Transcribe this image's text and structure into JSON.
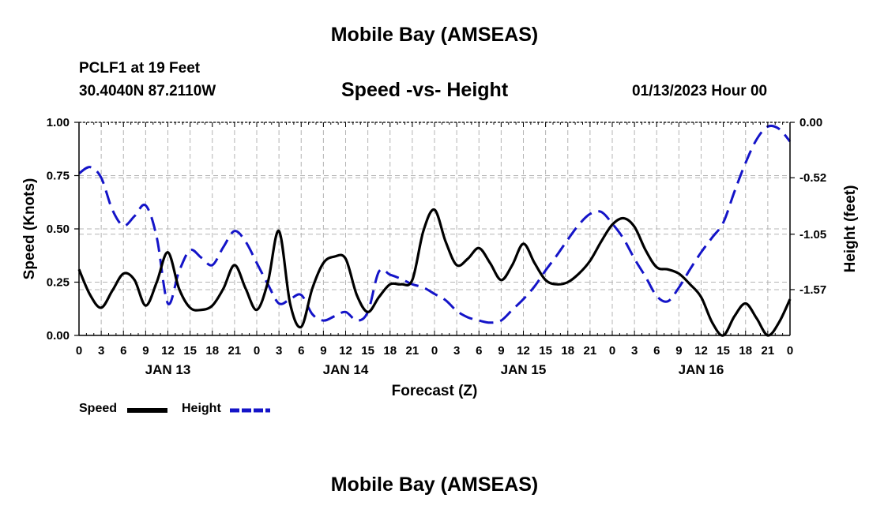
{
  "page": {
    "title_top": "Mobile Bay (AMSEAS)",
    "title_bottom": "Mobile Bay (AMSEAS)",
    "station": "PCLF1 at 19 Feet",
    "coords": "30.4040N  87.2110W",
    "subtitle": "Speed -vs- Height",
    "datetime": "01/13/2023 Hour 00"
  },
  "legend": {
    "speed_label": "Speed",
    "height_label": "Height"
  },
  "colors": {
    "speed": "#000000",
    "height": "#1414c8",
    "grid": "#b4b4b4"
  },
  "chart_data": {
    "type": "line",
    "xlabel": "Forecast (Z)",
    "ylabel_left": "Speed (Knots)",
    "ylabel_right": "Height (feet)",
    "xlim": [
      0,
      96
    ],
    "ylim_left": [
      0,
      1.0
    ],
    "ylim_right": [
      -2.0,
      0.0
    ],
    "grid": true,
    "x_ticks": [
      0,
      3,
      6,
      9,
      12,
      15,
      18,
      21,
      24,
      27,
      30,
      33,
      36,
      39,
      42,
      45,
      48,
      51,
      54,
      57,
      60,
      63,
      66,
      69,
      72,
      75,
      78,
      81,
      84,
      87,
      90,
      93,
      96
    ],
    "x_tick_labels": [
      "0",
      "3",
      "6",
      "9",
      "12",
      "15",
      "18",
      "21",
      "0",
      "3",
      "6",
      "9",
      "12",
      "15",
      "18",
      "21",
      "0",
      "3",
      "6",
      "9",
      "12",
      "15",
      "18",
      "21",
      "0",
      "3",
      "6",
      "9",
      "12",
      "15",
      "18",
      "21",
      "0"
    ],
    "day_labels": [
      {
        "x": 12,
        "label": "JAN 13"
      },
      {
        "x": 36,
        "label": "JAN 14"
      },
      {
        "x": 60,
        "label": "JAN 15"
      },
      {
        "x": 84,
        "label": "JAN 16"
      }
    ],
    "y_left_ticks": [
      0,
      0.25,
      0.5,
      0.75,
      1.0
    ],
    "y_left_tick_labels": [
      "0.00",
      "0.25",
      "0.50",
      "0.75",
      "1.00"
    ],
    "y_right_ticks": [
      0.0,
      -0.52,
      -1.05,
      -1.57
    ],
    "y_right_tick_labels": [
      "0.00",
      "-0.52",
      "-1.05",
      "-1.57"
    ],
    "series": [
      {
        "name": "Speed",
        "axis": "left",
        "style": "solid",
        "x": [
          0,
          1.5,
          3,
          4.5,
          6,
          7.5,
          9,
          10.5,
          12,
          13.5,
          15,
          16.5,
          18,
          19.5,
          21,
          22.5,
          24,
          25.5,
          27,
          28.5,
          30,
          31.5,
          33,
          34.5,
          36,
          37.5,
          39,
          40.5,
          42,
          43.5,
          45,
          46.5,
          48,
          49.5,
          51,
          52.5,
          54,
          55.5,
          57,
          58.5,
          60,
          61.5,
          63,
          64.5,
          66,
          67.5,
          69,
          70.5,
          72,
          73.5,
          75,
          76.5,
          78,
          79.5,
          81,
          82.5,
          84,
          85.5,
          87,
          88.5,
          90,
          91.5,
          93,
          94.5,
          96
        ],
        "values": [
          0.31,
          0.19,
          0.13,
          0.21,
          0.29,
          0.26,
          0.14,
          0.25,
          0.39,
          0.22,
          0.13,
          0.12,
          0.14,
          0.22,
          0.33,
          0.22,
          0.12,
          0.25,
          0.49,
          0.15,
          0.04,
          0.22,
          0.34,
          0.37,
          0.36,
          0.19,
          0.11,
          0.18,
          0.24,
          0.24,
          0.26,
          0.49,
          0.59,
          0.44,
          0.33,
          0.36,
          0.41,
          0.34,
          0.26,
          0.33,
          0.43,
          0.34,
          0.26,
          0.24,
          0.25,
          0.29,
          0.35,
          0.44,
          0.52,
          0.55,
          0.51,
          0.4,
          0.32,
          0.31,
          0.29,
          0.24,
          0.18,
          0.06,
          0.0,
          0.09,
          0.15,
          0.08,
          0.0,
          0.06,
          0.17
        ]
      },
      {
        "name": "Height",
        "axis": "right",
        "style": "dashed",
        "x": [
          0,
          1.5,
          3,
          4.5,
          6,
          7.5,
          9,
          10.5,
          12,
          13.5,
          15,
          16.5,
          18,
          19.5,
          21,
          22.5,
          24,
          25.5,
          27,
          28.5,
          30,
          31.5,
          33,
          34.5,
          36,
          37.5,
          39,
          40.5,
          42,
          43.5,
          45,
          46.5,
          48,
          49.5,
          51,
          52.5,
          54,
          55.5,
          57,
          58.5,
          60,
          61.5,
          63,
          64.5,
          66,
          67.5,
          69,
          70.5,
          72,
          73.5,
          75,
          76.5,
          78,
          79.5,
          81,
          82.5,
          84,
          85.5,
          87,
          88.5,
          90,
          91.5,
          93,
          94.5,
          96
        ],
        "values": [
          -0.48,
          -0.42,
          -0.52,
          -0.82,
          -0.97,
          -0.88,
          -0.78,
          -1.08,
          -1.7,
          -1.4,
          -1.2,
          -1.27,
          -1.34,
          -1.17,
          -1.02,
          -1.12,
          -1.32,
          -1.52,
          -1.7,
          -1.66,
          -1.62,
          -1.8,
          -1.86,
          -1.82,
          -1.78,
          -1.86,
          -1.78,
          -1.4,
          -1.43,
          -1.47,
          -1.52,
          -1.55,
          -1.61,
          -1.67,
          -1.77,
          -1.83,
          -1.86,
          -1.88,
          -1.86,
          -1.76,
          -1.66,
          -1.54,
          -1.39,
          -1.25,
          -1.1,
          -0.96,
          -0.86,
          -0.84,
          -0.95,
          -1.09,
          -1.28,
          -1.45,
          -1.63,
          -1.68,
          -1.55,
          -1.38,
          -1.22,
          -1.08,
          -0.94,
          -0.65,
          -0.38,
          -0.16,
          -0.04,
          -0.06,
          -0.18
        ]
      }
    ]
  }
}
